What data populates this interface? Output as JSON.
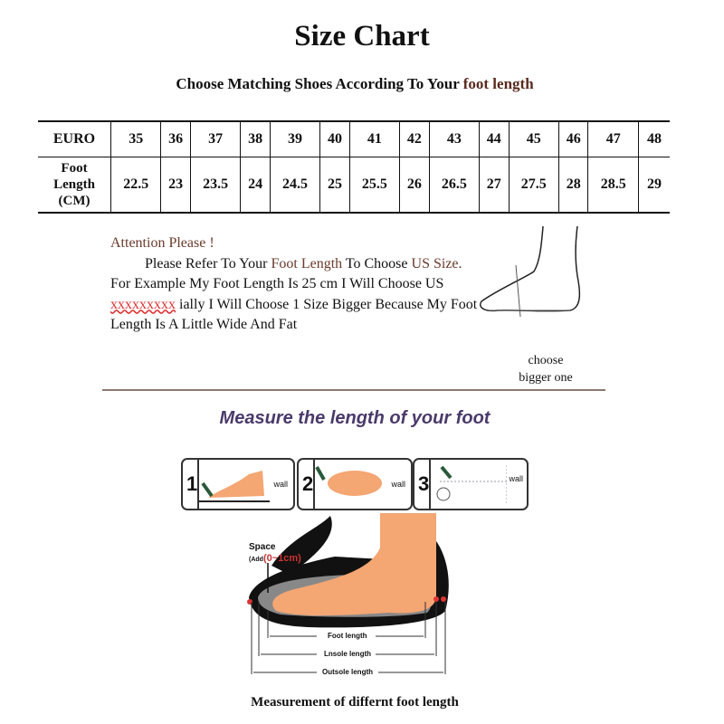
{
  "title": "Size Chart",
  "subtitle": {
    "prefix": "Choose Matching Shoes According To Your ",
    "highlight": "foot length"
  },
  "table": {
    "row1_header": "EURO",
    "row2_header": [
      "Foot",
      "Length",
      "(CM)"
    ],
    "euro": [
      "35",
      "36",
      "37",
      "38",
      "39",
      "40",
      "41",
      "42",
      "43",
      "44",
      "45",
      "46",
      "47",
      "48"
    ],
    "foot_length_cm": [
      "22.5",
      "23",
      "23.5",
      "24",
      "24.5",
      "25",
      "25.5",
      "26",
      "26.5",
      "27",
      "27.5",
      "28",
      "28.5",
      "29"
    ]
  },
  "attention": {
    "heading": "Attention Please !",
    "p1": "Please Refer To Your ",
    "p1_hl": "Foot Length",
    "p2": " To Choose ",
    "p2_hl": "US Size.",
    "p3": " For Example My Foot Length Is 25 cm I Will Choose US ",
    "p3_red": "xxxxxxxxx",
    "p4": " ially I Will Choose 1 Size Bigger Because My Foot Length Is A Little Wide And Fat"
  },
  "choose_note": [
    "choose",
    "bigger one"
  ],
  "measure_heading": "Measure the length of your foot",
  "steps": [
    {
      "number": "1",
      "wall": "wall"
    },
    {
      "number": "2",
      "wall": "wall"
    },
    {
      "number": "3",
      "wall": "wall"
    }
  ],
  "diagram": {
    "space": "Space",
    "add_prefix": "(Add",
    "add_value": "(0~1cm)",
    "foot_length": "Foot length",
    "insole_length": "Lnsole length",
    "outsole_length": "Outsole length"
  },
  "caption": "Measurement of differnt foot length",
  "colors": {
    "accent_brown": "#6b3a2a",
    "heading_purple": "#4a3a6a",
    "skin": "#f4a673",
    "red": "#d33333"
  }
}
